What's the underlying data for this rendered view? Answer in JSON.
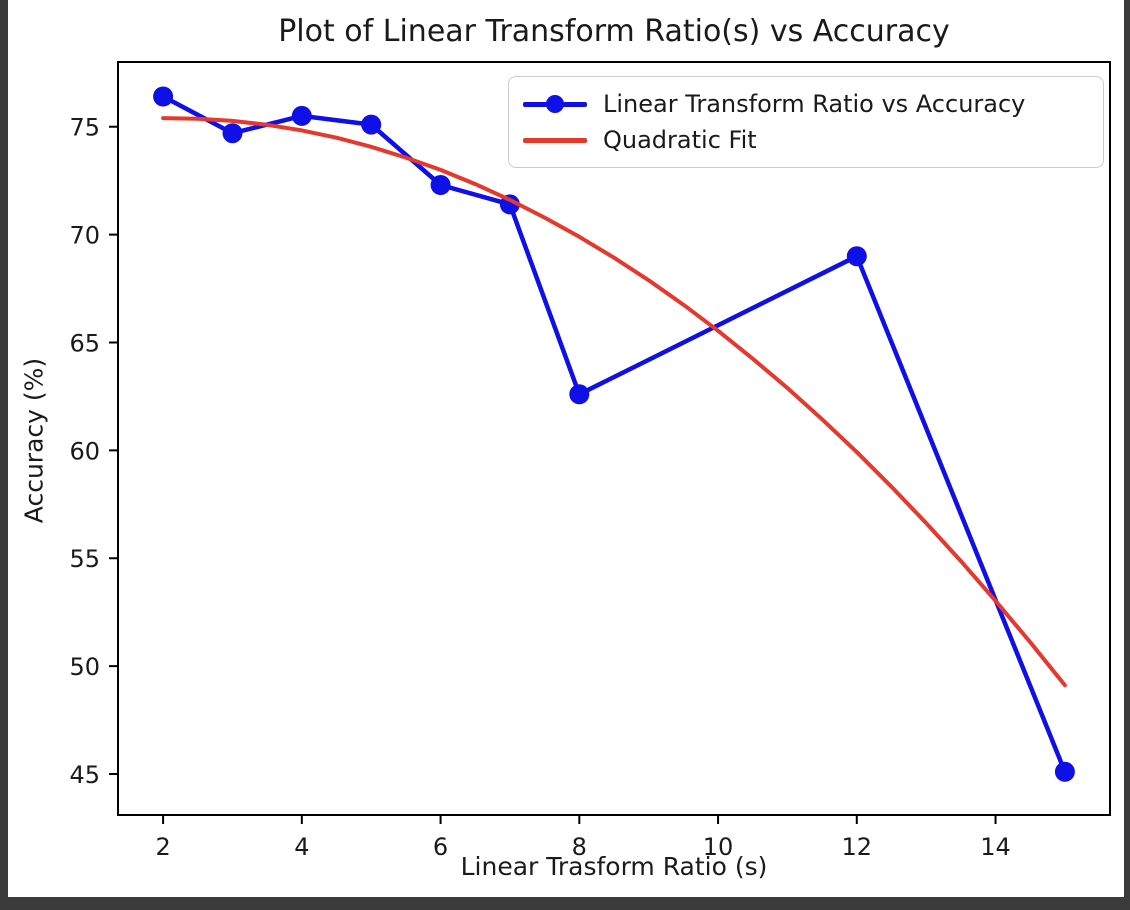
{
  "window": {
    "frame_color": "#3b3b3b",
    "figure_background": "#ffffff"
  },
  "chart_data": {
    "type": "line",
    "title": "Plot of Linear Transform Ratio(s) vs Accuracy",
    "xlabel": "Linear Trasform Ratio (s)",
    "ylabel": "Accuracy (%)",
    "xlim": [
      1.35,
      15.65
    ],
    "ylim": [
      43.1,
      78.0
    ],
    "xticks": [
      2,
      4,
      6,
      8,
      10,
      12,
      14
    ],
    "yticks": [
      45,
      50,
      55,
      60,
      65,
      70,
      75
    ],
    "grid": false,
    "legend_position": "upper right",
    "axis_color": "#000000",
    "series": [
      {
        "name": "Linear Transform Ratio vs Accuracy",
        "style": "line+markers",
        "color": "#0f0fe8",
        "marker": "circle",
        "marker_radius": 10,
        "line_width": 4.5,
        "x": [
          2,
          3,
          4,
          5,
          6,
          7,
          8,
          12,
          15
        ],
        "y": [
          76.4,
          74.7,
          75.5,
          75.1,
          72.3,
          71.4,
          62.6,
          69.0,
          45.1
        ]
      },
      {
        "name": "Quadratic Fit",
        "style": "line",
        "color": "#e5392e",
        "line_width": 4,
        "x": [
          2,
          2.5,
          3,
          3.5,
          4,
          4.5,
          5,
          5.5,
          6,
          6.5,
          7,
          7.5,
          8,
          8.5,
          9,
          9.5,
          10,
          10.5,
          11,
          11.5,
          12,
          12.5,
          13,
          13.5,
          14,
          14.5,
          15
        ],
        "y": [
          75.4,
          75.37,
          75.27,
          75.09,
          74.83,
          74.49,
          74.07,
          73.57,
          73.0,
          72.34,
          71.61,
          70.79,
          69.9,
          68.93,
          67.88,
          66.75,
          65.54,
          64.25,
          62.89,
          61.44,
          59.92,
          58.31,
          56.63,
          54.87,
          53.03,
          51.11,
          49.11
        ]
      }
    ]
  },
  "legend": {
    "item1": "Linear Transform Ratio vs Accuracy",
    "item2": "Quadratic Fit"
  }
}
